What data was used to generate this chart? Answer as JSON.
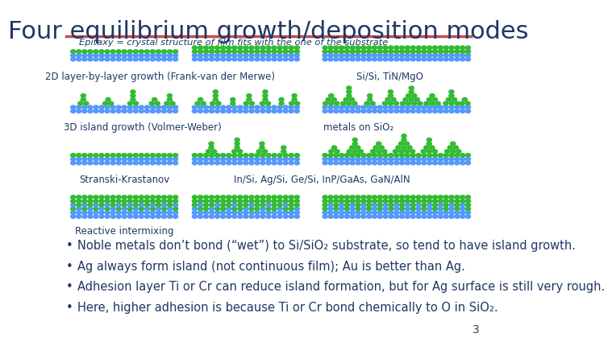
{
  "title": "Four equilibrium growth/deposition modes",
  "title_color": "#1F3864",
  "title_fontsize": 22,
  "divider_color": "#C0504D",
  "bg_color": "#FFFFFF",
  "slide_number": "3",
  "slide_number_color": "#404040",
  "epitaxy_text": "Epitaxy = crystal structure of film fits with the one of the substrate",
  "epitaxy_color": "#1F3864",
  "epitaxy_fontsize": 9,
  "bullet_color": "#1F3864",
  "bullet_fontsize": 10.5,
  "bullets": [
    "Noble metals don’t bond (“wet”) to Si/SiO₂ substrate, so tend to have island growth.",
    "Ag always form island (not continuous film); Au is better than Ag.",
    "Adhesion layer Ti or Cr can reduce island formation, but for Ag surface is still very rough.",
    "Here, higher adhesion is because Ti or Cr bond chemically to O in SiO₂."
  ],
  "substrate_color": "#5599FF",
  "film_color": "#33BB33"
}
